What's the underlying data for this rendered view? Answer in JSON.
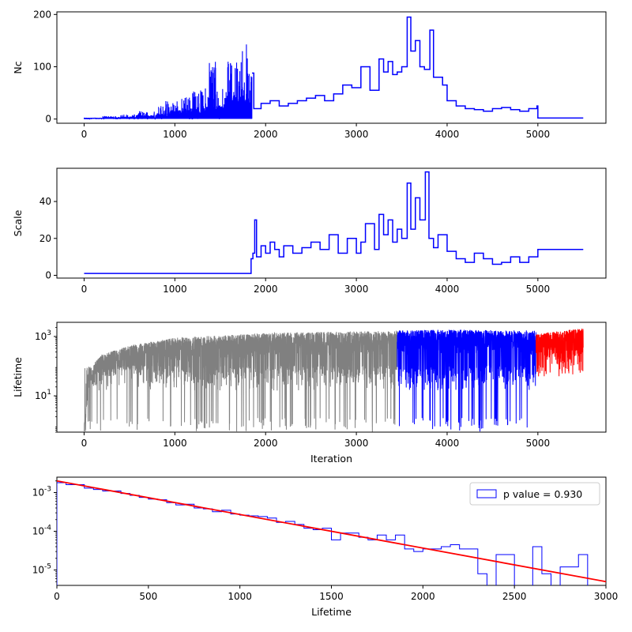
{
  "colors": {
    "blue": "#0000ff",
    "gray": "#808080",
    "red": "#ff0000",
    "axis": "#000000",
    "legend_border": "#cccccc"
  },
  "chart_data": [
    {
      "type": "line",
      "drawstyle": "steps",
      "ylabel": "Nc",
      "xlim": [
        -300,
        5750
      ],
      "ylim": [
        -8,
        205
      ],
      "x_ticks": [
        0,
        1000,
        2000,
        3000,
        4000,
        5000
      ],
      "y_ticks": [
        0,
        100,
        200
      ],
      "series": [
        {
          "color": "#0000ff",
          "x": [
            0,
            200,
            400,
            600,
            800,
            900,
            1000,
            1100,
            1200,
            1300,
            1380,
            1450,
            1550,
            1650,
            1740,
            1800,
            1850,
            1870,
            1950,
            2050,
            2150,
            2250,
            2350,
            2450,
            2550,
            2650,
            2750,
            2850,
            2950,
            3050,
            3150,
            3250,
            3300,
            3350,
            3400,
            3450,
            3500,
            3560,
            3600,
            3650,
            3700,
            3750,
            3810,
            3850,
            3950,
            4000,
            4100,
            4200,
            4300,
            4400,
            4500,
            4600,
            4700,
            4800,
            4900,
            4990,
            5000,
            5500
          ],
          "y": [
            2,
            5,
            8,
            15,
            25,
            35,
            40,
            50,
            55,
            60,
            120,
            65,
            110,
            115,
            150,
            100,
            88,
            20,
            30,
            35,
            25,
            30,
            35,
            40,
            45,
            35,
            48,
            65,
            60,
            100,
            55,
            115,
            90,
            110,
            85,
            90,
            100,
            195,
            130,
            150,
            100,
            95,
            170,
            80,
            65,
            35,
            25,
            20,
            18,
            15,
            20,
            22,
            18,
            15,
            20,
            25,
            2,
            2
          ]
        }
      ]
    },
    {
      "type": "line",
      "drawstyle": "steps",
      "ylabel": "Scale",
      "xlim": [
        -300,
        5750
      ],
      "ylim": [
        -1.5,
        58
      ],
      "x_ticks": [
        0,
        1000,
        2000,
        3000,
        4000,
        5000
      ],
      "y_ticks": [
        0,
        20,
        40
      ],
      "series": [
        {
          "color": "#0000ff",
          "x": [
            0,
            1840,
            1860,
            1880,
            1900,
            1950,
            2000,
            2050,
            2100,
            2150,
            2200,
            2300,
            2400,
            2500,
            2600,
            2700,
            2800,
            2900,
            3000,
            3050,
            3100,
            3200,
            3250,
            3300,
            3350,
            3400,
            3450,
            3500,
            3560,
            3600,
            3650,
            3700,
            3760,
            3800,
            3850,
            3900,
            4000,
            4100,
            4200,
            4300,
            4400,
            4500,
            4600,
            4700,
            4800,
            4900,
            5000,
            5500
          ],
          "y": [
            1,
            9,
            12,
            30,
            10,
            16,
            12,
            18,
            14,
            10,
            16,
            12,
            15,
            18,
            14,
            22,
            12,
            20,
            12,
            18,
            28,
            14,
            33,
            22,
            30,
            18,
            25,
            20,
            50,
            25,
            42,
            30,
            56,
            20,
            15,
            22,
            13,
            9,
            7,
            12,
            9,
            6,
            7,
            10,
            7,
            10,
            14,
            14
          ]
        }
      ]
    },
    {
      "type": "line",
      "ylabel": "Lifetime",
      "xlabel": "Iteration",
      "yscale": "log",
      "xlim": [
        -300,
        5750
      ],
      "ylim": [
        0.6,
        3000
      ],
      "x_ticks": [
        0,
        1000,
        2000,
        3000,
        4000,
        5000
      ],
      "y_ticks": [
        10,
        1000
      ],
      "y_tick_labels": [
        "10^1",
        "10^3"
      ],
      "series": [
        {
          "color": "#808080",
          "x_range": [
            0,
            3450
          ],
          "envelope_top": [
            [
              0,
              1
            ],
            [
              50,
              80
            ],
            [
              200,
              250
            ],
            [
              500,
              500
            ],
            [
              1000,
              900
            ],
            [
              2000,
              1300
            ],
            [
              3000,
              1500
            ],
            [
              3450,
              1500
            ]
          ],
          "typical_low": 30,
          "min_spike": 0.6
        },
        {
          "color": "#0000ff",
          "x_range": [
            3450,
            4980
          ],
          "envelope_top": [
            [
              3450,
              1600
            ],
            [
              4000,
              1700
            ],
            [
              4980,
              1600
            ]
          ],
          "typical_low": 30,
          "min_spike": 0.6
        },
        {
          "color": "#ff0000",
          "x_range": [
            4980,
            5500
          ],
          "envelope_top": [
            [
              4980,
              1200
            ],
            [
              5200,
              1500
            ],
            [
              5500,
              1900
            ]
          ],
          "typical_low": 100,
          "min_spike": 40
        }
      ]
    },
    {
      "type": "histogram",
      "xlabel": "Lifetime",
      "yscale": "log",
      "xlim": [
        0,
        3000
      ],
      "ylim": [
        4e-06,
        0.0025
      ],
      "x_ticks": [
        0,
        500,
        1000,
        1500,
        2000,
        2500,
        3000
      ],
      "y_ticks": [
        1e-05,
        0.0001,
        0.001
      ],
      "y_tick_labels": [
        "10^-5",
        "10^-4",
        "10^-3"
      ],
      "legend": {
        "label": "p value = 0.930",
        "position": "upper-right"
      },
      "bins": {
        "color": "#0000ff",
        "edges": [
          0,
          50,
          100,
          150,
          200,
          250,
          300,
          350,
          400,
          450,
          500,
          550,
          600,
          650,
          700,
          750,
          800,
          850,
          900,
          950,
          1000,
          1050,
          1100,
          1150,
          1200,
          1250,
          1300,
          1350,
          1400,
          1450,
          1500,
          1550,
          1600,
          1650,
          1700,
          1750,
          1800,
          1850,
          1900,
          1950,
          2000,
          2050,
          2100,
          2150,
          2200,
          2250,
          2300,
          2350,
          2400,
          2450,
          2500,
          2550,
          2600,
          2650,
          2700,
          2750,
          2800,
          2850,
          2900
        ],
        "values": [
          0.0018,
          0.0016,
          0.0016,
          0.0013,
          0.0012,
          0.0011,
          0.0011,
          0.00095,
          0.00085,
          0.00075,
          0.00068,
          0.00065,
          0.00055,
          0.00048,
          0.0005,
          0.0004,
          0.00038,
          0.00032,
          0.00035,
          0.00028,
          0.00026,
          0.00025,
          0.00024,
          0.00022,
          0.00017,
          0.00018,
          0.00015,
          0.00012,
          0.00011,
          0.00012,
          6e-05,
          9e-05,
          9e-05,
          7e-05,
          6e-05,
          8e-05,
          6e-05,
          8e-05,
          3.5e-05,
          3e-05,
          3.5e-05,
          3.5e-05,
          4e-05,
          4.5e-05,
          3.5e-05,
          3.5e-05,
          8e-06,
          1e-06,
          2.5e-05,
          2.5e-05,
          1e-06,
          1e-06,
          4e-05,
          8e-06,
          1e-06,
          1.2e-05,
          1.2e-05,
          2.5e-05
        ]
      },
      "fit_line": {
        "color": "#ff0000",
        "x": [
          0,
          3000
        ],
        "y": [
          0.002,
          5e-06
        ]
      }
    }
  ]
}
